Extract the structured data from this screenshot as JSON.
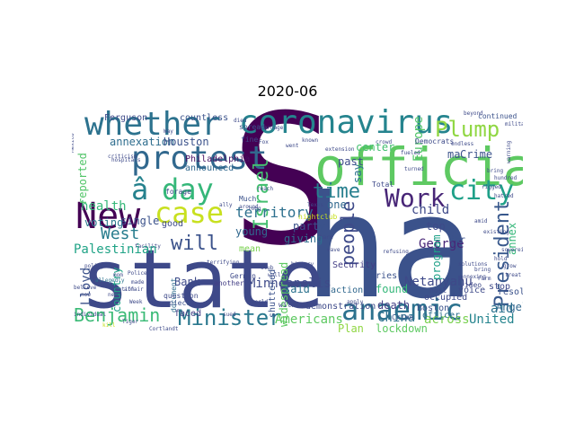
{
  "title": "2020-06",
  "words": [
    {
      "text": "S",
      "color": "#440154"
    },
    {
      "text": "ha",
      "color": "#3b528b"
    },
    {
      "text": "state",
      "color": "#3e4989"
    },
    {
      "text": "whether",
      "color": "#2c728e"
    },
    {
      "text": "coronavirus",
      "color": "#25848e"
    },
    {
      "text": "official",
      "color": "#5ec962"
    },
    {
      "text": "protest",
      "color": "#31688e"
    },
    {
      "text": "New",
      "color": "#440154"
    },
    {
      "text": "case",
      "color": "#c8e020"
    },
    {
      "text": "â",
      "color": "#26828e"
    },
    {
      "text": "day",
      "color": "#35b779"
    },
    {
      "text": "anaemic",
      "color": "#2c728e"
    },
    {
      "text": "Work",
      "color": "#482677"
    },
    {
      "text": "city",
      "color": "#1fa088"
    },
    {
      "text": "Plump",
      "color": "#90d743"
    },
    {
      "text": "Minister",
      "color": "#2a788e"
    },
    {
      "text": "Benjamin",
      "color": "#3aba76"
    },
    {
      "text": "President",
      "color": "#38588c"
    },
    {
      "text": "people",
      "color": "#3e4a89"
    },
    {
      "text": "time",
      "color": "#277f8e"
    },
    {
      "text": "Israel",
      "color": "#44bf70"
    },
    {
      "text": "will",
      "color": "#3b528b"
    },
    {
      "text": "West",
      "color": "#287d8e"
    },
    {
      "text": "territory",
      "color": "#2d708e"
    },
    {
      "text": "Palestinian",
      "color": "#20a386"
    },
    {
      "text": "Americans",
      "color": "#5ec962"
    },
    {
      "text": "United",
      "color": "#25848e"
    },
    {
      "text": "across",
      "color": "#7ad151"
    },
    {
      "text": "Netanyahu",
      "color": "#3e4989"
    },
    {
      "text": "annexation",
      "color": "#2e6d8e"
    },
    {
      "text": "Houston",
      "color": "#3b528b"
    },
    {
      "text": "health",
      "color": "#35b779"
    },
    {
      "text": "voting",
      "color": "#2a788e"
    },
    {
      "text": "reported",
      "color": "#52c569"
    },
    {
      "text": "announced",
      "color": "#31688e"
    },
    {
      "text": "Philadelphia",
      "color": "#471063"
    },
    {
      "text": "Minneapolis",
      "color": "#3e4a89"
    },
    {
      "text": "widespread",
      "color": "#5ec962"
    },
    {
      "text": "said",
      "color": "#2c728e"
    },
    {
      "text": "Lloyd",
      "color": "#3b528b"
    },
    {
      "text": "Bank",
      "color": "#3e4a89"
    },
    {
      "text": "country",
      "color": "#20a386"
    },
    {
      "text": "George",
      "color": "#482677"
    },
    {
      "text": "child",
      "color": "#3e4989"
    },
    {
      "text": "found",
      "color": "#35b779"
    },
    {
      "text": "death",
      "color": "#433e85"
    },
    {
      "text": "China",
      "color": "#2d708e"
    },
    {
      "text": "Boston",
      "color": "#3b528b"
    },
    {
      "text": "program",
      "color": "#1fa088"
    },
    {
      "text": "annex",
      "color": "#35b779"
    },
    {
      "text": "Crime",
      "color": "#3b528b"
    },
    {
      "text": "Europe",
      "color": "#52c569"
    },
    {
      "text": "center",
      "color": "#44bf70"
    },
    {
      "text": "past",
      "color": "#3e4a89"
    },
    {
      "text": "party",
      "color": "#3b528b"
    },
    {
      "text": "giving",
      "color": "#2e6d8e"
    },
    {
      "text": "single",
      "color": "#3b528b"
    },
    {
      "text": "young",
      "color": "#31688e"
    },
    {
      "text": "good",
      "color": "#3e4a89"
    },
    {
      "text": "mean",
      "color": "#7ad151"
    },
    {
      "text": "faced",
      "color": "#433e85"
    },
    {
      "text": "top",
      "color": "#3e4a89"
    },
    {
      "text": "far",
      "color": "#3b528b"
    },
    {
      "text": "one",
      "color": "#31688e"
    },
    {
      "text": "say",
      "color": "#2c728e"
    },
    {
      "text": "Plan",
      "color": "#90d743"
    },
    {
      "text": "lockdown",
      "color": "#5ec962"
    },
    {
      "text": "resolute",
      "color": "#3b528b"
    },
    {
      "text": "stop",
      "color": "#3e4989"
    },
    {
      "text": "aid",
      "color": "#2c728e"
    },
    {
      "text": "Angeles",
      "color": "#31688e"
    },
    {
      "text": "occupied",
      "color": "#3e4989"
    },
    {
      "text": "Ferguson",
      "color": "#3e4a89"
    },
    {
      "text": "countless",
      "color": "#3b528b"
    },
    {
      "text": "demonstration",
      "color": "#3e4a89"
    },
    {
      "text": "series",
      "color": "#3b528b"
    },
    {
      "text": "Security",
      "color": "#433e85"
    },
    {
      "text": "action",
      "color": "#31688e"
    },
    {
      "text": "officer",
      "color": "#2d708e"
    },
    {
      "text": "voice",
      "color": "#3e4a89"
    },
    {
      "text": "continued",
      "color": "#3b528b"
    },
    {
      "text": "ma",
      "color": "#3b528b"
    },
    {
      "text": "document",
      "color": "#2e6d8e"
    },
    {
      "text": "question",
      "color": "#3e4a89"
    },
    {
      "text": "shuttered",
      "color": "#3b528b"
    },
    {
      "text": "forage",
      "color": "#3e4989"
    },
    {
      "text": "Much",
      "color": "#3b528b"
    },
    {
      "text": "another",
      "color": "#433e85"
    },
    {
      "text": "German",
      "color": "#3e4a89"
    },
    {
      "text": "piece",
      "color": "#3b528b"
    },
    {
      "text": "witness",
      "color": "#3e4a89"
    },
    {
      "text": "Total",
      "color": "#3e4a89"
    },
    {
      "text": "Crime",
      "color": "#3b528b"
    },
    {
      "text": "host",
      "color": "#3e4a89"
    },
    {
      "text": "video",
      "color": "#3e4989"
    },
    {
      "text": "fine",
      "color": "#3e4a89"
    },
    {
      "text": "spread",
      "color": "#3b528b"
    },
    {
      "text": "nightclub",
      "color": "#c8e020"
    },
    {
      "text": "kill",
      "color": "#c8e020"
    },
    {
      "text": "Tiger",
      "color": "#3e4a89"
    },
    {
      "text": "Cortlandt",
      "color": "#3e4a89"
    },
    {
      "text": "facility",
      "color": "#3e4a89"
    },
    {
      "text": "hospitals",
      "color": "#3e4a89"
    },
    {
      "text": "allegedly",
      "color": "#2c728e"
    },
    {
      "text": "Mexico",
      "color": "#3e4a89"
    },
    {
      "text": "Democrats",
      "color": "#3e4a89"
    },
    {
      "text": "Way",
      "color": "#3e4a89"
    },
    {
      "text": "Fox",
      "color": "#3e4a89"
    },
    {
      "text": "went",
      "color": "#3e4a89"
    },
    {
      "text": "died",
      "color": "#3e4a89"
    },
    {
      "text": "known",
      "color": "#3e4a89"
    },
    {
      "text": "carnage",
      "color": "#3e4a89"
    },
    {
      "text": "crowd",
      "color": "#3e4a89"
    },
    {
      "text": "endless",
      "color": "#3e4a89"
    },
    {
      "text": "beyond",
      "color": "#3e4a89"
    },
    {
      "text": "military",
      "color": "#3e4a89"
    },
    {
      "text": "rigged",
      "color": "#3e4a89"
    },
    {
      "text": "hatred",
      "color": "#3e4a89"
    },
    {
      "text": "bring",
      "color": "#3e4a89"
    },
    {
      "text": "hundred",
      "color": "#3e4a89"
    },
    {
      "text": "warning",
      "color": "#3e4a89"
    },
    {
      "text": "individual",
      "color": "#3e4a89"
    },
    {
      "text": "policy",
      "color": "#3e4a89"
    },
    {
      "text": "terrifying",
      "color": "#3e4a89"
    },
    {
      "text": "harm",
      "color": "#3e4a89"
    },
    {
      "text": "wave",
      "color": "#3e4a89"
    },
    {
      "text": "history",
      "color": "#3e4a89"
    },
    {
      "text": "Texas",
      "color": "#3e4a89"
    },
    {
      "text": "long",
      "color": "#3e4a89"
    },
    {
      "text": "sued",
      "color": "#3e4a89"
    },
    {
      "text": "reach",
      "color": "#3e4a89"
    },
    {
      "text": "around",
      "color": "#3e4a89"
    },
    {
      "text": "club",
      "color": "#3e4a89"
    },
    {
      "text": "wall",
      "color": "#3e4a89"
    },
    {
      "text": "ally",
      "color": "#3e4a89"
    },
    {
      "text": "world",
      "color": "#3e4a89"
    },
    {
      "text": "apply",
      "color": "#3e4a89"
    },
    {
      "text": "refusing",
      "color": "#3e4a89"
    },
    {
      "text": "fueled",
      "color": "#3e4a89"
    },
    {
      "text": "turned",
      "color": "#3e4a89"
    },
    {
      "text": "bring",
      "color": "#3e4a89"
    },
    {
      "text": "Farm",
      "color": "#3e4a89"
    },
    {
      "text": "treat",
      "color": "#3e4a89"
    },
    {
      "text": "grow",
      "color": "#3e4a89"
    },
    {
      "text": "hold",
      "color": "#3e4a89"
    },
    {
      "text": "sovereignty",
      "color": "#3e4a89"
    },
    {
      "text": "annexing",
      "color": "#3e4a89"
    },
    {
      "text": "solutions",
      "color": "#3e4a89"
    },
    {
      "text": "existing",
      "color": "#3e4a89"
    },
    {
      "text": "amid",
      "color": "#3e4a89"
    },
    {
      "text": "extension",
      "color": "#3e4a89"
    },
    {
      "text": "criticism",
      "color": "#3e4a89"
    },
    {
      "text": "affair",
      "color": "#3e4a89"
    },
    {
      "text": "Police",
      "color": "#3e4a89"
    },
    {
      "text": "nation",
      "color": "#3e4a89"
    },
    {
      "text": "Week",
      "color": "#3e4a89"
    },
    {
      "text": "made",
      "color": "#3e4a89"
    },
    {
      "text": "mom",
      "color": "#3e4a89"
    },
    {
      "text": "new",
      "color": "#3e4a89"
    },
    {
      "text": "believe",
      "color": "#3e4a89"
    },
    {
      "text": "now",
      "color": "#3e4a89"
    },
    {
      "text": "knew",
      "color": "#3e4a89"
    }
  ]
}
